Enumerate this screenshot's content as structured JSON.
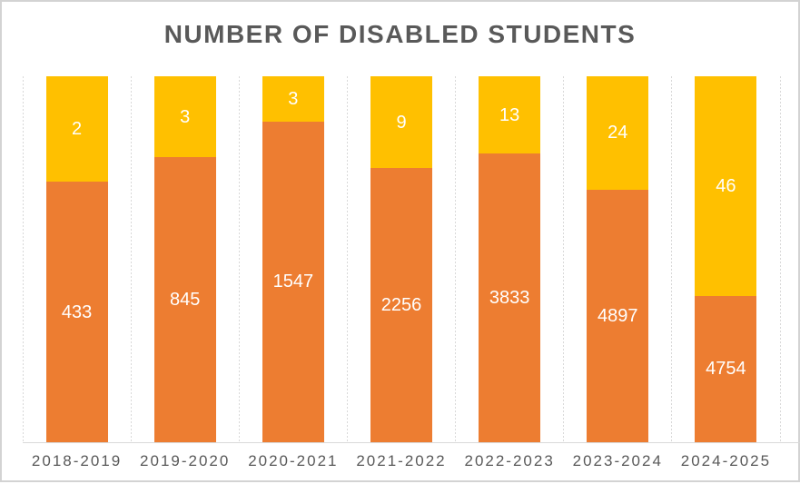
{
  "colors": {
    "orange": "#ED7D31",
    "yellow": "#FFC000",
    "title_text": "#595959",
    "axis_text": "#595959",
    "gridline": "#D9D9D9",
    "axis_line": "#D9D9D9",
    "border": "#D3D3D3",
    "data_label_text": "#FFFFFF",
    "background": "#FFFFFF"
  },
  "chart_data": {
    "type": "bar",
    "subtype": "stacked-column-full-height",
    "title": "NUMBER OF DISABLED STUDENTS",
    "categories": [
      "2018-2019",
      "2019-2020",
      "2020-2021",
      "2021-2022",
      "2022-2023",
      "2023-2024",
      "2024-2025"
    ],
    "series": [
      {
        "name": "orange-bottom-segment",
        "color": "#ED7D31",
        "values": [
          433,
          845,
          1547,
          2256,
          3833,
          4897,
          4754
        ]
      },
      {
        "name": "yellow-top-segment",
        "color": "#FFC000",
        "values": [
          2,
          3,
          3,
          9,
          13,
          24,
          46
        ]
      }
    ],
    "data_labels": "centered-in-segment, white",
    "legend": "none",
    "xlabel": "",
    "ylabel": "",
    "y_axis_ticks": "none",
    "grid": "vertical-dashed-between-categories",
    "layout_hints": {
      "bars_reach_plot_top": true,
      "yellow_segment_height_pct": [
        28.8,
        22.2,
        12.4,
        25.1,
        21.2,
        31.0,
        60.0
      ],
      "orange_segment_height_pct": [
        71.2,
        77.8,
        87.6,
        74.9,
        78.8,
        69.0,
        40.0
      ]
    }
  }
}
